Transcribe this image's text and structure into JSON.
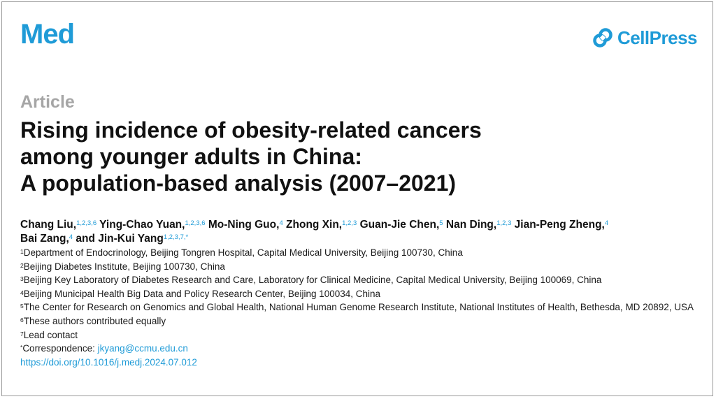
{
  "header": {
    "journal": "Med",
    "publisher": "CellPress",
    "brand_color": "#1f9bd7",
    "publisher_icon": "cellpress-logo-icon"
  },
  "article": {
    "type": "Article",
    "title_lines": [
      "Rising incidence of obesity-related cancers",
      "among younger adults in China:",
      "A population-based analysis (2007–2021)"
    ]
  },
  "authors": [
    {
      "name": "Chang Liu,",
      "sup": "1,2,3,6"
    },
    {
      "name": "Ying-Chao Yuan,",
      "sup": "1,2,3,6"
    },
    {
      "name": "Mo-Ning Guo,",
      "sup": "4"
    },
    {
      "name": "Zhong Xin,",
      "sup": "1,2,3"
    },
    {
      "name": "Guan-Jie Chen,",
      "sup": "5"
    },
    {
      "name": "Nan Ding,",
      "sup": "1,2,3"
    },
    {
      "name": "Jian-Peng Zheng,",
      "sup": "4"
    },
    {
      "name": "Bai Zang,",
      "sup": "4"
    },
    {
      "name": "and Jin-Kui Yang",
      "sup": "1,2,3,7,*"
    }
  ],
  "affiliations": [
    {
      "num": "1",
      "text": "Department of Endocrinology, Beijing Tongren Hospital, Capital Medical University, Beijing 100730, China"
    },
    {
      "num": "2",
      "text": "Beijing Diabetes Institute, Beijing 100730, China"
    },
    {
      "num": "3",
      "text": "Beijing Key Laboratory of Diabetes Research and Care, Laboratory for Clinical Medicine, Capital Medical University, Beijing 100069, China"
    },
    {
      "num": "4",
      "text": "Beijing Municipal Health Big Data and Policy Research Center, Beijing 100034, China"
    },
    {
      "num": "5",
      "text": "The Center for Research on Genomics and Global Health, National Human Genome Research Institute, National Institutes of Health, Bethesda, MD 20892, USA"
    },
    {
      "num": "6",
      "text": "These authors contributed equally"
    },
    {
      "num": "7",
      "text": "Lead contact"
    }
  ],
  "correspondence": {
    "mark": "*",
    "label": "Correspondence: ",
    "email": "jkyang@ccmu.edu.cn"
  },
  "doi": "https://doi.org/10.1016/j.medj.2024.07.012"
}
